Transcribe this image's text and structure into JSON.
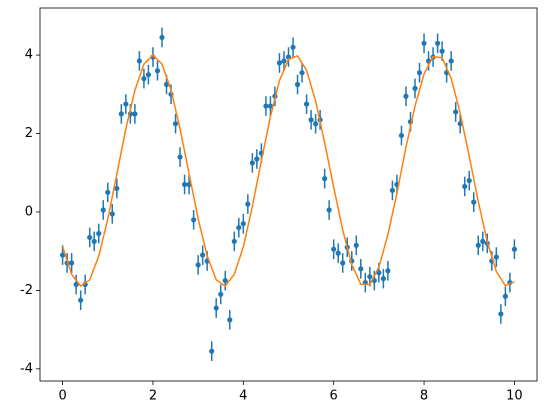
{
  "chart_data": {
    "type": "errorbar_fit",
    "xlim": [
      -0.5,
      10.5
    ],
    "ylim": [
      -4.31,
      5.2
    ],
    "xticks": [
      0,
      2,
      4,
      6,
      8,
      10
    ],
    "yticks": [
      -4,
      -2,
      0,
      2,
      4
    ],
    "grid": false,
    "series": [
      {
        "type": "scatter",
        "color": "#1f77b4",
        "yerr": 0.25,
        "x": [
          0.0,
          0.1,
          0.2,
          0.3,
          0.4,
          0.5,
          0.6,
          0.7,
          0.8,
          0.9,
          1.0,
          1.1,
          1.2,
          1.3,
          1.4,
          1.5,
          1.6,
          1.7,
          1.8,
          1.9,
          2.0,
          2.1,
          2.2,
          2.3,
          2.4,
          2.5,
          2.6,
          2.7,
          2.8,
          2.9,
          3.0,
          3.1,
          3.2,
          3.3,
          3.4,
          3.5,
          3.6,
          3.7,
          3.8,
          3.9,
          4.0,
          4.1,
          4.2,
          4.3,
          4.4,
          4.5,
          4.6,
          4.7,
          4.8,
          4.9,
          5.0,
          5.1,
          5.2,
          5.3,
          5.4,
          5.5,
          5.6,
          5.7,
          5.8,
          5.9,
          6.0,
          6.1,
          6.2,
          6.3,
          6.4,
          6.5,
          6.6,
          6.7,
          6.8,
          6.9,
          7.0,
          7.1,
          7.2,
          7.3,
          7.4,
          7.5,
          7.6,
          7.7,
          7.8,
          7.9,
          8.0,
          8.1,
          8.2,
          8.3,
          8.4,
          8.5,
          8.6,
          8.7,
          8.8,
          8.9,
          9.0,
          9.1,
          9.2,
          9.3,
          9.4,
          9.5,
          9.6,
          9.7,
          9.8,
          9.9,
          10.0
        ],
        "values": [
          -1.1,
          -1.3,
          -1.3,
          -1.85,
          -2.25,
          -1.85,
          -0.65,
          -0.75,
          -0.55,
          0.05,
          0.5,
          -0.05,
          0.6,
          2.5,
          2.75,
          2.5,
          2.5,
          3.85,
          3.4,
          3.5,
          3.95,
          3.6,
          4.45,
          3.25,
          3.0,
          2.25,
          1.4,
          0.7,
          0.7,
          -0.2,
          -1.35,
          -1.1,
          -1.25,
          -3.55,
          -2.45,
          -2.1,
          -1.75,
          -2.75,
          -0.75,
          -0.4,
          -0.3,
          0.2,
          1.25,
          1.35,
          1.5,
          2.7,
          2.7,
          2.95,
          3.8,
          3.85,
          3.95,
          4.2,
          3.25,
          3.55,
          2.75,
          2.35,
          2.25,
          2.35,
          0.85,
          0.05,
          -0.95,
          -1.05,
          -1.3,
          -0.9,
          -1.25,
          -0.85,
          -1.45,
          -1.8,
          -1.65,
          -1.75,
          -1.55,
          -1.7,
          -1.5,
          0.55,
          0.7,
          1.95,
          2.95,
          2.3,
          3.15,
          3.55,
          4.3,
          3.85,
          3.95,
          4.3,
          4.1,
          3.55,
          3.85,
          2.55,
          2.25,
          0.65,
          0.8,
          0.25,
          -0.85,
          -0.75,
          -0.8,
          -1.25,
          -1.15,
          -2.6,
          -2.15,
          -1.8,
          -0.95
        ]
      },
      {
        "type": "line",
        "color": "#ff7f0e",
        "x": [
          0.0,
          0.2,
          0.4,
          0.6,
          0.8,
          1.0,
          1.2,
          1.4,
          1.6,
          1.8,
          2.0,
          2.2,
          2.4,
          2.6,
          2.8,
          3.0,
          3.2,
          3.4,
          3.6,
          3.8,
          4.0,
          4.2,
          4.4,
          4.6,
          4.8,
          5.0,
          5.2,
          5.4,
          5.6,
          5.8,
          6.0,
          6.2,
          6.4,
          6.6,
          6.8,
          7.0,
          7.2,
          7.4,
          7.6,
          7.8,
          8.0,
          8.2,
          8.4,
          8.6,
          8.8,
          9.0,
          9.2,
          9.4,
          9.6,
          9.8,
          10.0
        ],
        "values": [
          -0.88,
          -1.59,
          -1.89,
          -1.73,
          -1.13,
          -0.18,
          0.96,
          2.12,
          3.1,
          3.77,
          4.0,
          3.77,
          3.11,
          2.12,
          0.97,
          -0.17,
          -1.12,
          -1.73,
          -1.89,
          -1.59,
          -0.89,
          0.14,
          1.31,
          2.43,
          3.35,
          3.89,
          3.98,
          3.61,
          2.83,
          1.77,
          0.63,
          -0.46,
          -1.34,
          -1.84,
          -1.85,
          -1.41,
          -0.58,
          0.48,
          1.65,
          2.7,
          3.52,
          3.96,
          3.93,
          3.41,
          2.52,
          1.42,
          0.27,
          -0.76,
          -1.52,
          -1.88,
          -1.78
        ]
      }
    ]
  }
}
